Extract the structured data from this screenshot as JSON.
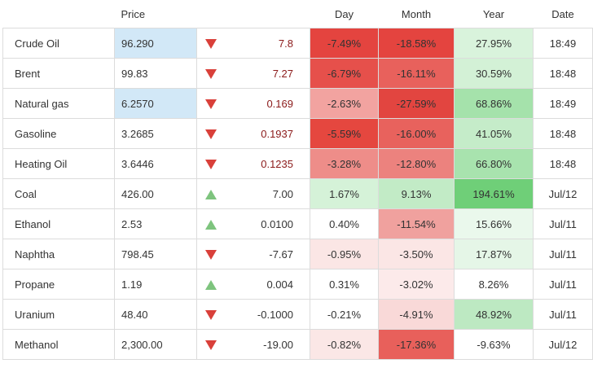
{
  "header": {
    "price": "Price",
    "day": "Day",
    "month": "Month",
    "year": "Year",
    "date": "Date"
  },
  "colors": {
    "down_arrow": "#d9403a",
    "up_arrow": "#7ec47e",
    "highlight_price": "#d2e8f7",
    "neg_change_text": "#8b1a1a"
  },
  "rows": [
    {
      "name": "Crude Oil",
      "price": "96.290",
      "dir": "down",
      "change": "7.8",
      "change_neg": true,
      "day": "-7.49%",
      "month": "-18.58%",
      "year": "27.95%",
      "date": "18:49",
      "price_hl": true,
      "day_bg": "#e4443f",
      "month_bg": "#e4443f",
      "year_bg": "#d9f3dc"
    },
    {
      "name": "Brent",
      "price": "99.83",
      "dir": "down",
      "change": "7.27",
      "change_neg": true,
      "day": "-6.79%",
      "month": "-16.11%",
      "year": "30.59%",
      "date": "18:48",
      "price_hl": false,
      "day_bg": "#e6504b",
      "month_bg": "#e8615c",
      "year_bg": "#d3f1d6"
    },
    {
      "name": "Natural gas",
      "price": "6.2570",
      "dir": "down",
      "change": "0.169",
      "change_neg": true,
      "day": "-2.63%",
      "month": "-27.59%",
      "year": "68.86%",
      "date": "18:49",
      "price_hl": true,
      "day_bg": "#f2a3a0",
      "month_bg": "#e24540",
      "year_bg": "#a5e2ab"
    },
    {
      "name": "Gasoline",
      "price": "3.2685",
      "dir": "down",
      "change": "0.1937",
      "change_neg": true,
      "day": "-5.59%",
      "month": "-16.00%",
      "year": "41.05%",
      "date": "18:48",
      "price_hl": false,
      "day_bg": "#e5473f",
      "month_bg": "#e8625d",
      "year_bg": "#c5ecc9"
    },
    {
      "name": "Heating Oil",
      "price": "3.6446",
      "dir": "down",
      "change": "0.1235",
      "change_neg": true,
      "day": "-3.28%",
      "month": "-12.80%",
      "year": "66.80%",
      "date": "18:48",
      "price_hl": false,
      "day_bg": "#ee8d89",
      "month_bg": "#ec827e",
      "year_bg": "#a8e3ae"
    },
    {
      "name": "Coal",
      "price": "426.00",
      "dir": "up",
      "change": "7.00",
      "change_neg": false,
      "day": "1.67%",
      "month": "9.13%",
      "year": "194.61%",
      "date": "Jul/12",
      "price_hl": false,
      "day_bg": "#d5f2d8",
      "month_bg": "#c2ebc6",
      "year_bg": "#6fcf78"
    },
    {
      "name": "Ethanol",
      "price": "2.53",
      "dir": "up",
      "change": "0.0100",
      "change_neg": false,
      "day": "0.40%",
      "month": "-11.54%",
      "year": "15.66%",
      "date": "Jul/11",
      "price_hl": false,
      "day_bg": "#ffffff",
      "month_bg": "#f0a19e",
      "year_bg": "#eaf8ec"
    },
    {
      "name": "Naphtha",
      "price": "798.45",
      "dir": "down",
      "change": "-7.67",
      "change_neg": false,
      "day": "-0.95%",
      "month": "-3.50%",
      "year": "17.87%",
      "date": "Jul/11",
      "price_hl": false,
      "day_bg": "#fbe6e5",
      "month_bg": "#fbe6e5",
      "year_bg": "#e5f6e7"
    },
    {
      "name": "Propane",
      "price": "1.19",
      "dir": "up",
      "change": "0.004",
      "change_neg": false,
      "day": "0.31%",
      "month": "-3.02%",
      "year": "8.26%",
      "date": "Jul/11",
      "price_hl": false,
      "day_bg": "#ffffff",
      "month_bg": "#fceaea",
      "year_bg": "#ffffff"
    },
    {
      "name": "Uranium",
      "price": "48.40",
      "dir": "down",
      "change": "-0.1000",
      "change_neg": false,
      "day": "-0.21%",
      "month": "-4.91%",
      "year": "48.92%",
      "date": "Jul/11",
      "price_hl": false,
      "day_bg": "#ffffff",
      "month_bg": "#f9d9d8",
      "year_bg": "#bde9c2"
    },
    {
      "name": "Methanol",
      "price": "2,300.00",
      "dir": "down",
      "change": "-19.00",
      "change_neg": false,
      "day": "-0.82%",
      "month": "-17.36%",
      "year": "-9.63%",
      "date": "Jul/12",
      "price_hl": false,
      "day_bg": "#fbe7e6",
      "month_bg": "#e8605b",
      "year_bg": "#ffffff"
    }
  ]
}
